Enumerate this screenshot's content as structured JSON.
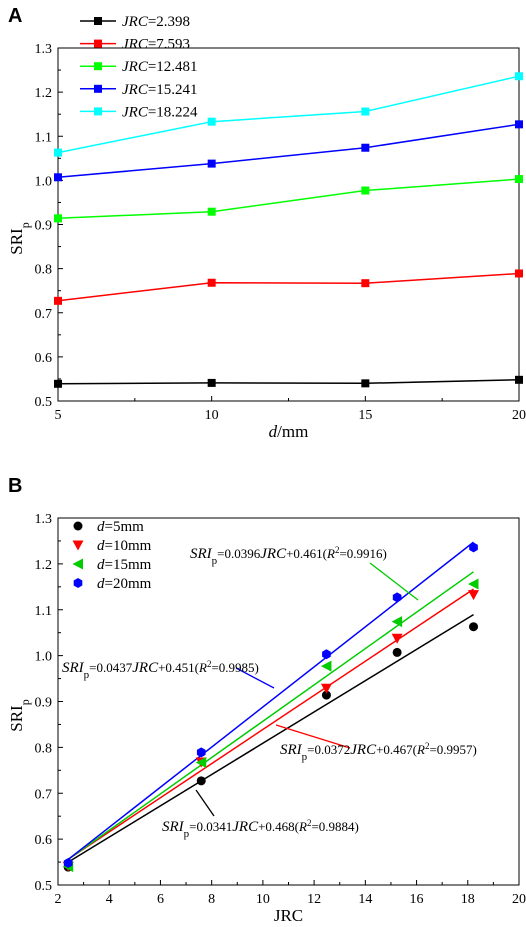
{
  "chart_data": [
    {
      "panel": "A",
      "type": "line",
      "xlabel_italic": "d",
      "xlabel_rest": "/mm",
      "ylabel_main": "SRI",
      "ylabel_sub": "p",
      "x": [
        5,
        10,
        15,
        20
      ],
      "xlim": [
        5,
        20
      ],
      "ylim": [
        0.5,
        1.3
      ],
      "xticks": [
        "5",
        "10",
        "15",
        "20"
      ],
      "yticks": [
        "0.5",
        "0.6",
        "0.7",
        "0.8",
        "0.9",
        "1.0",
        "1.1",
        "1.2",
        "1.3"
      ],
      "legend_position": "top-left",
      "series": [
        {
          "name_italic": "JRC",
          "name_rest": "=2.398",
          "color": "#000000",
          "values": [
            0.539,
            0.541,
            0.54,
            0.548
          ]
        },
        {
          "name_italic": "JRC",
          "name_rest": "=7.593",
          "color": "#ff0000",
          "values": [
            0.727,
            0.768,
            0.767,
            0.789
          ]
        },
        {
          "name_italic": "JRC",
          "name_rest": "=12.481",
          "color": "#00ff00",
          "values": [
            0.914,
            0.929,
            0.977,
            1.003
          ]
        },
        {
          "name_italic": "JRC",
          "name_rest": "=15.241",
          "color": "#0000ff",
          "values": [
            1.007,
            1.038,
            1.074,
            1.127
          ]
        },
        {
          "name_italic": "JRC",
          "name_rest": "=18.224",
          "color": "#00ffff",
          "values": [
            1.063,
            1.133,
            1.156,
            1.236
          ]
        }
      ]
    },
    {
      "panel": "B",
      "type": "scatter",
      "xlabel": "JRC",
      "ylabel_main": "SRI",
      "ylabel_sub": "p",
      "xlim": [
        2,
        20
      ],
      "ylim": [
        0.5,
        1.3
      ],
      "xticks": [
        "2",
        "4",
        "6",
        "8",
        "10",
        "12",
        "14",
        "16",
        "18",
        "20"
      ],
      "yticks": [
        "0.5",
        "0.6",
        "0.7",
        "0.8",
        "0.9",
        "1.0",
        "1.1",
        "1.2",
        "1.3"
      ],
      "legend_position": "top-left",
      "x": [
        2.398,
        7.593,
        12.481,
        15.241,
        18.224
      ],
      "series": [
        {
          "name_italic": "d",
          "name_rest": "=5mm",
          "marker": "circle",
          "color": "#000000",
          "values": [
            0.539,
            0.727,
            0.914,
            1.007,
            1.063
          ],
          "fit": {
            "slope": 0.0341,
            "intercept": 0.468,
            "r2": "0.9884"
          }
        },
        {
          "name_italic": "d",
          "name_rest": "=10mm",
          "marker": "triangle-down",
          "color": "#ff0000",
          "values": [
            0.541,
            0.768,
            0.929,
            1.038,
            1.133
          ],
          "fit": {
            "slope": 0.0372,
            "intercept": 0.467,
            "r2": "0.9957"
          }
        },
        {
          "name_italic": "d",
          "name_rest": "=15mm",
          "marker": "triangle-left",
          "color": "#00cc00",
          "values": [
            0.54,
            0.767,
            0.977,
            1.074,
            1.156
          ],
          "fit": {
            "slope": 0.0396,
            "intercept": 0.461,
            "r2": "0.9916"
          }
        },
        {
          "name_italic": "d",
          "name_rest": "=20mm",
          "marker": "hexagon",
          "color": "#0000ff",
          "values": [
            0.548,
            0.789,
            1.003,
            1.127,
            1.236
          ],
          "fit": {
            "slope": 0.0437,
            "intercept": 0.451,
            "r2": "0.9985"
          }
        }
      ],
      "annotations": [
        {
          "series": 2,
          "text": [
            "SRI",
            "p",
            "=0.0396",
            "JRC",
            "+0.461(",
            "R",
            "2",
            "=0.9916)"
          ]
        },
        {
          "series": 3,
          "text": [
            "SRI",
            "p",
            "=0.0437",
            "JRC",
            "+0.451(",
            "R",
            "2",
            "=0.9985)"
          ]
        },
        {
          "series": 1,
          "text": [
            "SRI",
            "p",
            "=0.0372",
            "JRC",
            "+0.467(",
            "R",
            "2",
            "=0.9957)"
          ]
        },
        {
          "series": 0,
          "text": [
            "SRI",
            "p",
            "=0.0341",
            "JRC",
            "+0.468(",
            "R",
            "2",
            "=0.9884)"
          ]
        }
      ]
    }
  ]
}
